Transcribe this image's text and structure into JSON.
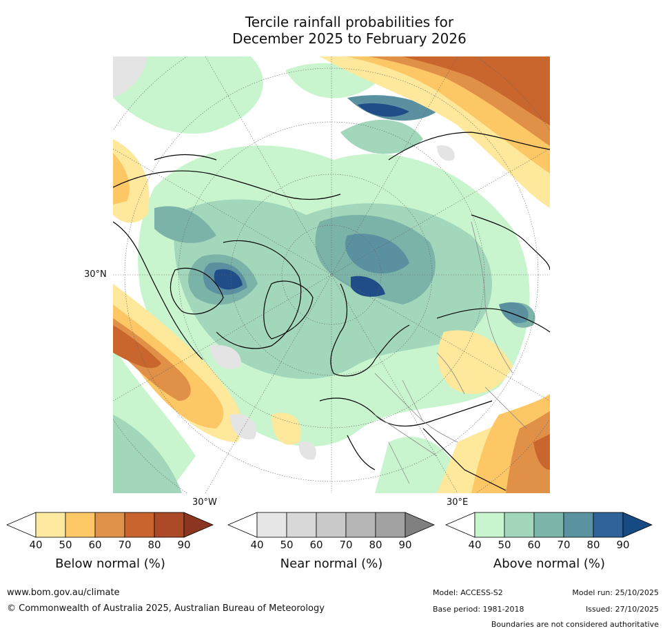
{
  "title_line1": "Tercile rainfall probabilities for",
  "title_line2": "December 2025 to February 2026",
  "map": {
    "lat_label": "30°N",
    "lon_label_west": "30°W",
    "lon_label_east": "30°E",
    "colors": {
      "ocean": "#ffffff",
      "above_50": "#c8f5cd",
      "above_60": "#a2d7bb",
      "above_70": "#7bb3a8",
      "above_80": "#5b90a0",
      "above_90": "#3d6a9c",
      "above_max": "#204d88",
      "below_50": "#fde89c",
      "below_60": "#fdc765",
      "below_70": "#e09047",
      "below_80": "#c9662d",
      "near_50": "#e4e4e4",
      "coast": "#000000",
      "border": "#888888"
    }
  },
  "legends": [
    {
      "id": "below",
      "title": "Below normal (%)",
      "ticks": [
        "40",
        "50",
        "60",
        "70",
        "80",
        "90"
      ],
      "colors": [
        "#ffffff",
        "#fdeaa0",
        "#fdc865",
        "#e0914a",
        "#c9642f",
        "#ac4a27",
        "#8c3520"
      ]
    },
    {
      "id": "near",
      "title": "Near normal (%)",
      "ticks": [
        "40",
        "50",
        "60",
        "70",
        "80",
        "90"
      ],
      "colors": [
        "#ffffff",
        "#e6e6e6",
        "#d8d8d8",
        "#c9c9c9",
        "#b5b5b5",
        "#a2a2a2",
        "#808080"
      ]
    },
    {
      "id": "above",
      "title": "Above normal (%)",
      "ticks": [
        "40",
        "50",
        "60",
        "70",
        "80",
        "90"
      ],
      "colors": [
        "#ffffff",
        "#c8f5cd",
        "#a2d7bb",
        "#7cb5aa",
        "#5a92a0",
        "#2f639a",
        "#154a82"
      ]
    }
  ],
  "footer": {
    "url": "www.bom.gov.au/climate",
    "copyright": "© Commonwealth of Australia 2025, Australian Bureau of Meteorology",
    "model": "Model: ACCESS-S2",
    "model_run": "Model run: 25/10/2025",
    "base_period": "Base period: 1981-2018",
    "issued": "Issued: 27/10/2025",
    "disclaimer": "Boundaries are not considered authoritative"
  }
}
